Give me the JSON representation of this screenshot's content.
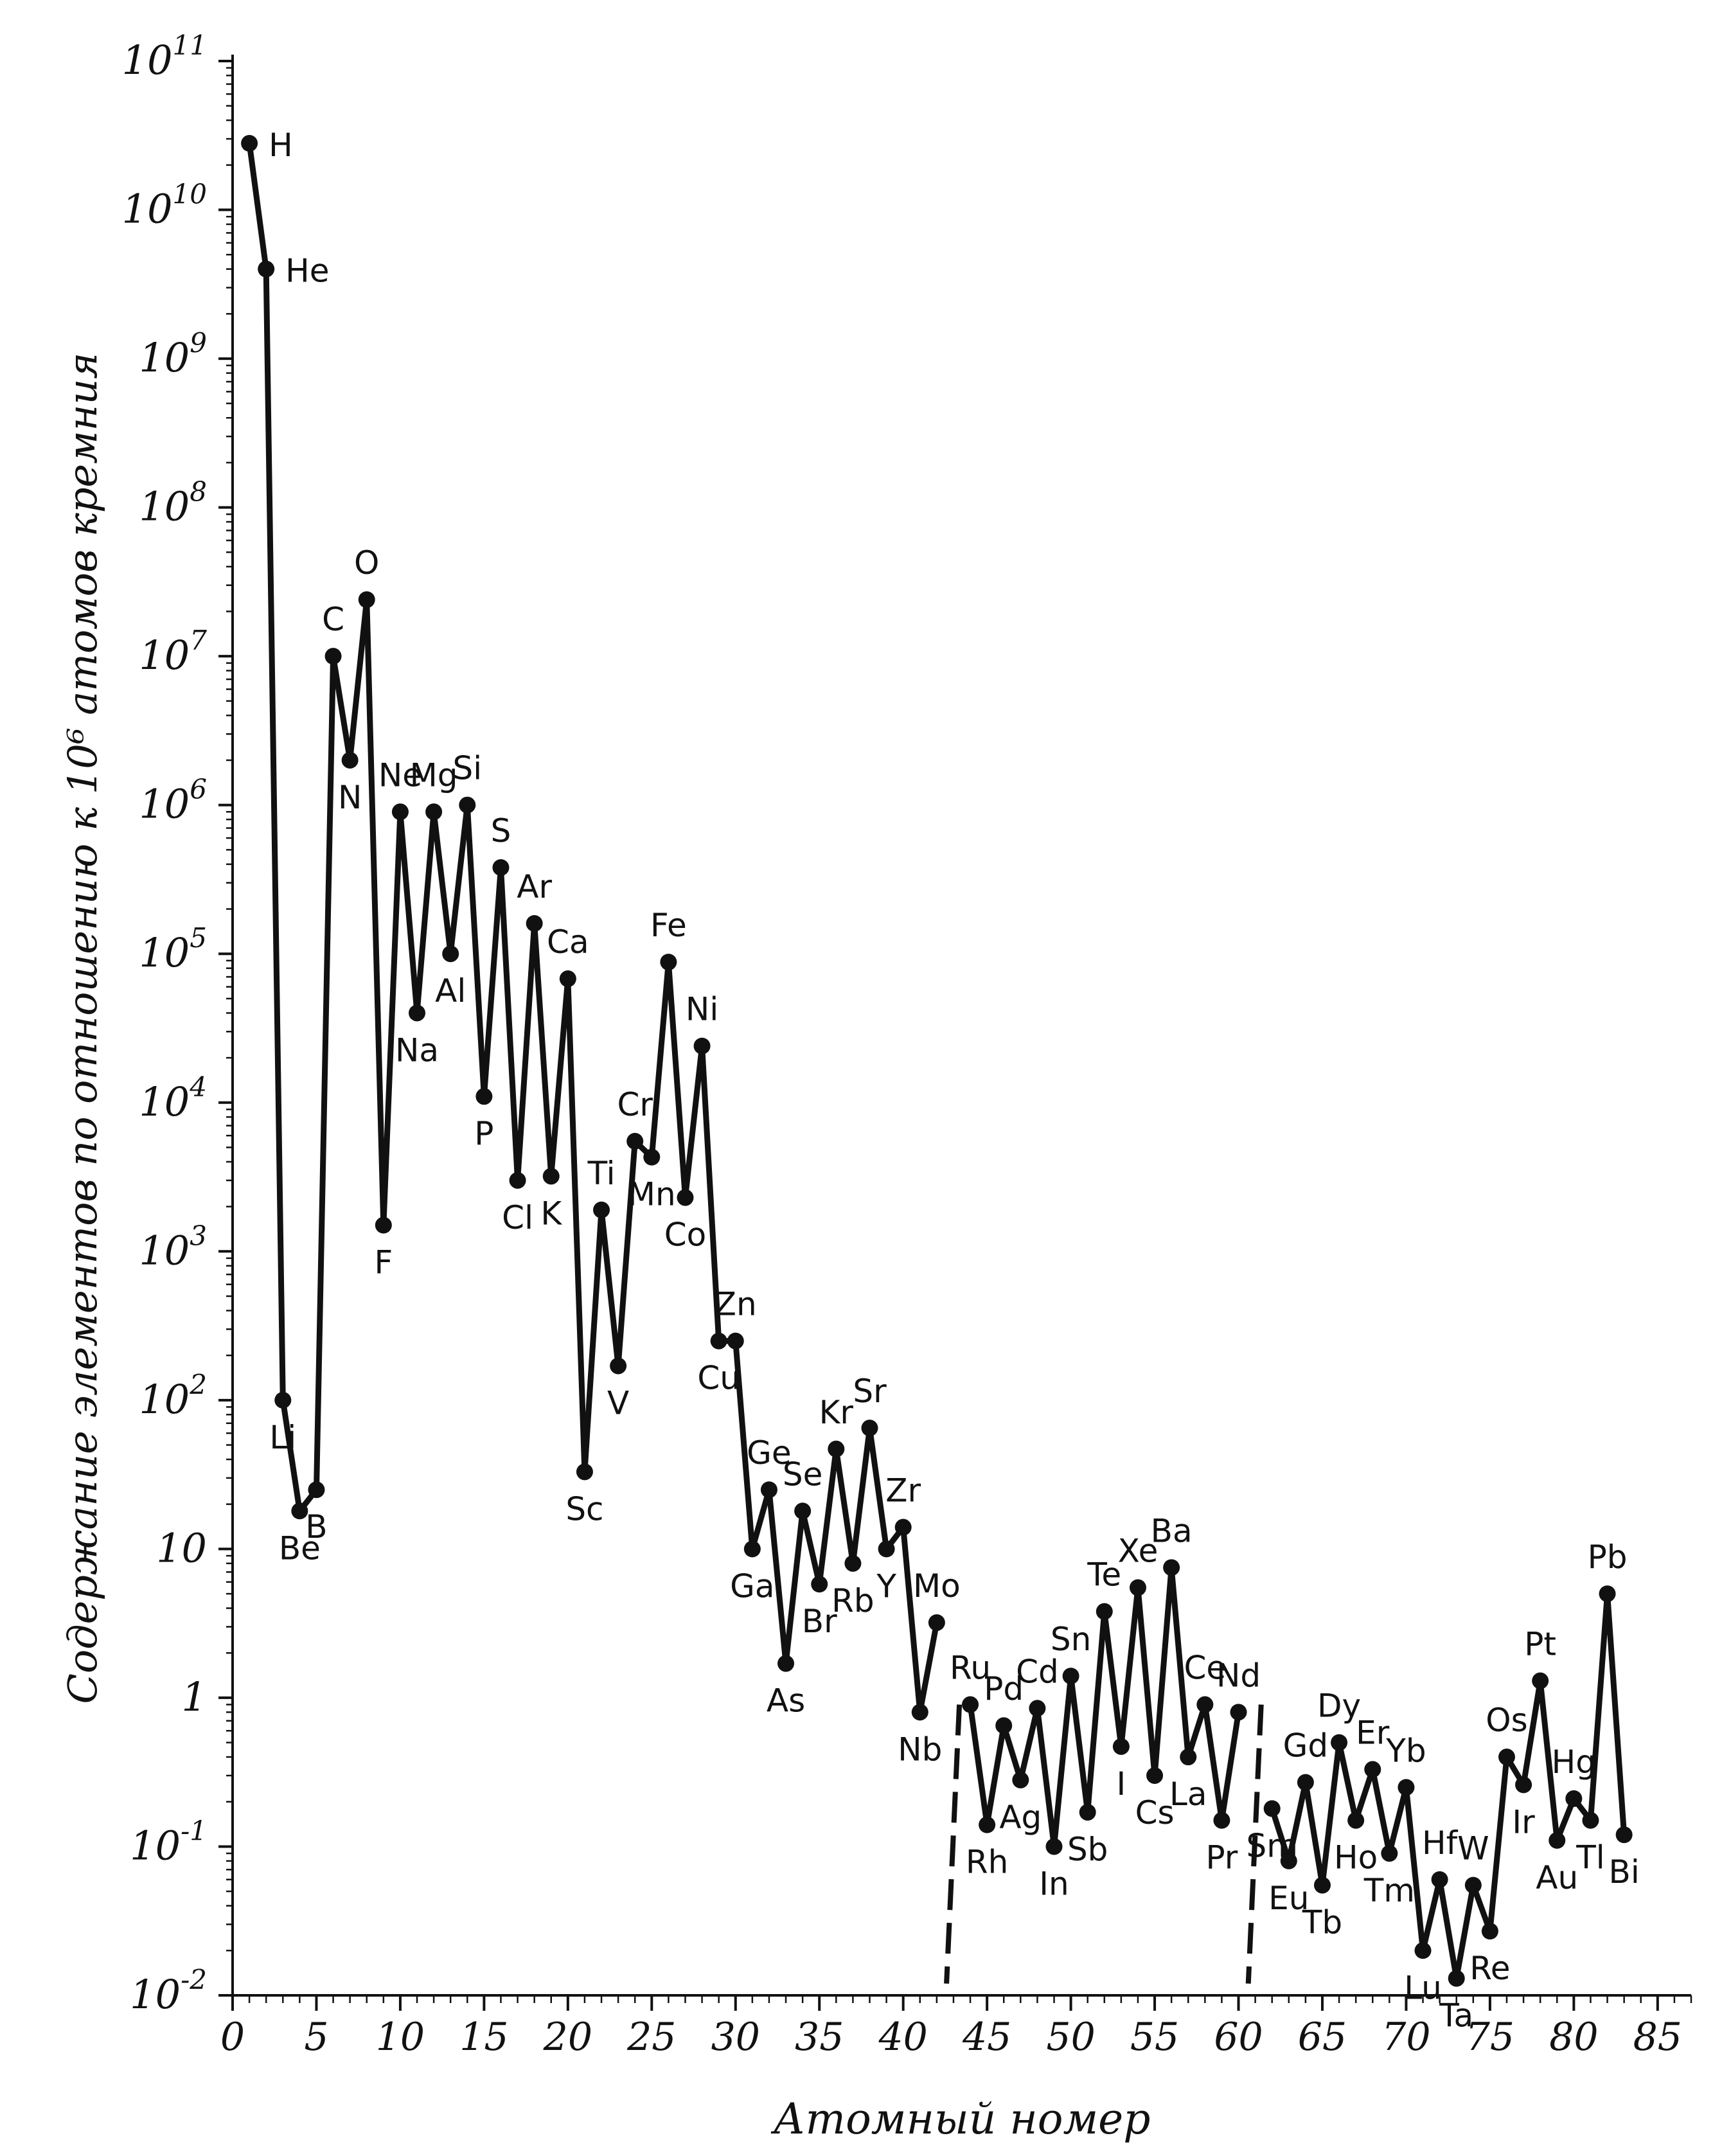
{
  "chart_data": {
    "type": "line",
    "ylabel": "Содержание элементов по отношению к 10⁶ атомов кремния",
    "xlabel": "Атомный номер",
    "yscale": "log",
    "ylim": [
      0.01,
      100000000000
    ],
    "xlim": [
      0,
      87
    ],
    "x_ticks": [
      0,
      5,
      10,
      15,
      20,
      25,
      30,
      35,
      40,
      45,
      50,
      55,
      60,
      65,
      70,
      75,
      80,
      85
    ],
    "y_ticks": [
      {
        "value": 100000000000,
        "base": "10",
        "exp": "11"
      },
      {
        "value": 10000000000,
        "base": "10",
        "exp": "10"
      },
      {
        "value": 1000000000,
        "base": "10",
        "exp": "9"
      },
      {
        "value": 100000000,
        "base": "10",
        "exp": "8"
      },
      {
        "value": 10000000,
        "base": "10",
        "exp": "7"
      },
      {
        "value": 1000000,
        "base": "10",
        "exp": "6"
      },
      {
        "value": 100000,
        "base": "10",
        "exp": "5"
      },
      {
        "value": 10000,
        "base": "10",
        "exp": "4"
      },
      {
        "value": 1000,
        "base": "10",
        "exp": "3"
      },
      {
        "value": 100,
        "base": "10",
        "exp": "2"
      },
      {
        "value": 10,
        "base": "10",
        "exp": ""
      },
      {
        "value": 1,
        "base": "1",
        "exp": ""
      },
      {
        "value": 0.1,
        "base": "10",
        "exp": "-1"
      },
      {
        "value": 0.01,
        "base": "10",
        "exp": "-2"
      }
    ],
    "grid": false,
    "points": [
      {
        "x": 1,
        "y": 28000000000,
        "label": "H"
      },
      {
        "x": 2,
        "y": 4000000000,
        "label": "He"
      },
      {
        "x": 3,
        "y": 100,
        "label": "Li"
      },
      {
        "x": 4,
        "y": 18,
        "label": "Be"
      },
      {
        "x": 5,
        "y": 25,
        "label": "B"
      },
      {
        "x": 6,
        "y": 10000000,
        "label": "C"
      },
      {
        "x": 7,
        "y": 2000000,
        "label": "N"
      },
      {
        "x": 8,
        "y": 24000000,
        "label": "O"
      },
      {
        "x": 9,
        "y": 1500,
        "label": "F"
      },
      {
        "x": 10,
        "y": 900000,
        "label": "Ne"
      },
      {
        "x": 11,
        "y": 40000,
        "label": "Na"
      },
      {
        "x": 12,
        "y": 900000,
        "label": "Mg"
      },
      {
        "x": 13,
        "y": 100000,
        "label": "Al"
      },
      {
        "x": 14,
        "y": 1000000,
        "label": "Si"
      },
      {
        "x": 15,
        "y": 11000,
        "label": "P"
      },
      {
        "x": 16,
        "y": 380000,
        "label": "S"
      },
      {
        "x": 17,
        "y": 3000,
        "label": "Cl"
      },
      {
        "x": 18,
        "y": 160000,
        "label": "Ar"
      },
      {
        "x": 19,
        "y": 3200,
        "label": "K"
      },
      {
        "x": 20,
        "y": 68000,
        "label": "Ca"
      },
      {
        "x": 21,
        "y": 33,
        "label": "Sc"
      },
      {
        "x": 22,
        "y": 1900,
        "label": "Ti"
      },
      {
        "x": 23,
        "y": 170,
        "label": "V"
      },
      {
        "x": 24,
        "y": 5500,
        "label": "Cr"
      },
      {
        "x": 25,
        "y": 4300,
        "label": "Mn"
      },
      {
        "x": 26,
        "y": 88000,
        "label": "Fe"
      },
      {
        "x": 27,
        "y": 2300,
        "label": "Co"
      },
      {
        "x": 28,
        "y": 24000,
        "label": "Ni"
      },
      {
        "x": 29,
        "y": 250,
        "label": "Cu"
      },
      {
        "x": 30,
        "y": 250,
        "label": "Zn"
      },
      {
        "x": 31,
        "y": 10,
        "label": "Ga"
      },
      {
        "x": 32,
        "y": 25,
        "label": "Ge"
      },
      {
        "x": 33,
        "y": 1.7,
        "label": "As"
      },
      {
        "x": 34,
        "y": 18,
        "label": "Se"
      },
      {
        "x": 35,
        "y": 5.8,
        "label": "Br"
      },
      {
        "x": 36,
        "y": 47,
        "label": "Kr"
      },
      {
        "x": 37,
        "y": 8,
        "label": "Rb"
      },
      {
        "x": 38,
        "y": 65,
        "label": "Sr"
      },
      {
        "x": 39,
        "y": 10,
        "label": "Y"
      },
      {
        "x": 40,
        "y": 14,
        "label": "Zr"
      },
      {
        "x": 41,
        "y": 0.8,
        "label": "Nb"
      },
      {
        "x": 42,
        "y": 3.2,
        "label": "Mo"
      },
      {
        "x": 44,
        "y": 0.9,
        "label": "Ru"
      },
      {
        "x": 45,
        "y": 0.14,
        "label": "Rh"
      },
      {
        "x": 46,
        "y": 0.65,
        "label": "Pd"
      },
      {
        "x": 47,
        "y": 0.28,
        "label": "Ag"
      },
      {
        "x": 48,
        "y": 0.85,
        "label": "Cd"
      },
      {
        "x": 49,
        "y": 0.1,
        "label": "In"
      },
      {
        "x": 50,
        "y": 1.4,
        "label": "Sn"
      },
      {
        "x": 51,
        "y": 0.17,
        "label": "Sb"
      },
      {
        "x": 52,
        "y": 3.8,
        "label": "Te"
      },
      {
        "x": 53,
        "y": 0.47,
        "label": "I"
      },
      {
        "x": 54,
        "y": 5.5,
        "label": "Xe"
      },
      {
        "x": 55,
        "y": 0.3,
        "label": "Cs"
      },
      {
        "x": 56,
        "y": 7.5,
        "label": "Ba"
      },
      {
        "x": 57,
        "y": 0.4,
        "label": "La"
      },
      {
        "x": 58,
        "y": 0.9,
        "label": "Ce"
      },
      {
        "x": 59,
        "y": 0.15,
        "label": "Pr"
      },
      {
        "x": 60,
        "y": 0.8,
        "label": "Nd"
      },
      {
        "x": 62,
        "y": 0.18,
        "label": "Sm"
      },
      {
        "x": 63,
        "y": 0.08,
        "label": "Eu"
      },
      {
        "x": 64,
        "y": 0.27,
        "label": "Gd"
      },
      {
        "x": 65,
        "y": 0.055,
        "label": "Tb"
      },
      {
        "x": 66,
        "y": 0.5,
        "label": "Dy"
      },
      {
        "x": 67,
        "y": 0.15,
        "label": "Ho"
      },
      {
        "x": 68,
        "y": 0.33,
        "label": "Er"
      },
      {
        "x": 69,
        "y": 0.09,
        "label": "Tm"
      },
      {
        "x": 70,
        "y": 0.25,
        "label": "Yb"
      },
      {
        "x": 71,
        "y": 0.02,
        "label": "Lu"
      },
      {
        "x": 72,
        "y": 0.06,
        "label": "Hf"
      },
      {
        "x": 73,
        "y": 0.013,
        "label": "Ta"
      },
      {
        "x": 74,
        "y": 0.055,
        "label": "W"
      },
      {
        "x": 75,
        "y": 0.027,
        "label": "Re"
      },
      {
        "x": 76,
        "y": 0.4,
        "label": "Os"
      },
      {
        "x": 77,
        "y": 0.26,
        "label": "Ir"
      },
      {
        "x": 78,
        "y": 1.3,
        "label": "Pt"
      },
      {
        "x": 79,
        "y": 0.11,
        "label": "Au"
      },
      {
        "x": 80,
        "y": 0.21,
        "label": "Hg"
      },
      {
        "x": 81,
        "y": 0.15,
        "label": "Tl"
      },
      {
        "x": 82,
        "y": 5,
        "label": "Pb"
      },
      {
        "x": 83,
        "y": 0.12,
        "label": "Bi"
      }
    ],
    "gap_markers": [
      43,
      61
    ]
  }
}
